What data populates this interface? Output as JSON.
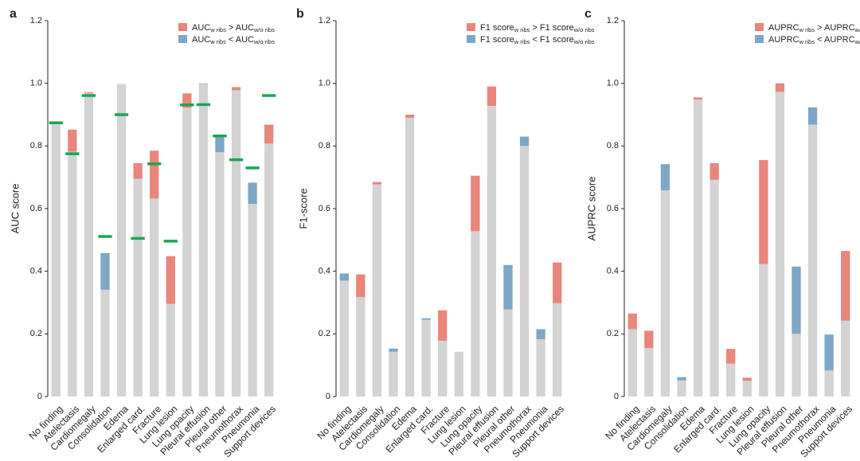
{
  "colors": {
    "base": "#d3d3d3",
    "higher_with_ribs": "#e8857d",
    "lower_with_ribs": "#7ea6c6",
    "marker": "#1aa552"
  },
  "legend": {
    "a": [
      {
        "main1": "AUC",
        "sub1": "w ribs",
        "op": ">",
        "main2": "AUC",
        "sub2": "w/o ribs"
      },
      {
        "main1": "AUC",
        "sub1": "w ribs",
        "op": "<",
        "main2": "AUC",
        "sub2": "w/o ribs"
      }
    ],
    "b": [
      {
        "main1": "F1 score",
        "sub1": "w ribs",
        "op": ">",
        "main2": "F1 score",
        "sub2": "w/o ribs"
      },
      {
        "main1": "F1 score",
        "sub1": "w ribs",
        "op": "<",
        "main2": "F1 score",
        "sub2": "w/o ribs"
      }
    ],
    "c": [
      {
        "main1": "AUPRC",
        "sub1": "w ribs",
        "op": ">",
        "main2": "AUPRC",
        "sub2": "w/o ribs"
      },
      {
        "main1": "AUPRC",
        "sub1": "w ribs",
        "op": "<",
        "main2": "AUPRC",
        "sub2": "w/o ribs"
      }
    ]
  },
  "chart_data": [
    {
      "panel": "a",
      "type": "bar",
      "ylabel": "AUC score",
      "ylim": [
        0,
        1.2
      ],
      "yticks": [
        "0",
        "0.2",
        "0.4",
        "0.6",
        "0.8",
        "1.0",
        "1.2"
      ],
      "categories": [
        "No finding",
        "Atelectasis",
        "Cardiomegaly",
        "Consolidation",
        "Edema",
        "Enlarged card.",
        "Fracture",
        "Lung lesion",
        "Lung opacity",
        "Pleural effusion",
        "Pleural other",
        "Pneumothorax",
        "Pneumonia",
        "Support devices"
      ],
      "with_ribs": [
        0.873,
        0.852,
        0.972,
        0.341,
        0.998,
        0.745,
        0.785,
        0.448,
        0.968,
        1.0,
        0.78,
        0.988,
        0.615,
        0.868
      ],
      "without_ribs": [
        0.872,
        0.782,
        0.968,
        0.458,
        0.998,
        0.695,
        0.632,
        0.296,
        0.922,
        0.998,
        0.833,
        0.978,
        0.683,
        0.808
      ],
      "reference": [
        0.874,
        0.775,
        0.961,
        0.511,
        0.9,
        0.505,
        0.743,
        0.496,
        0.931,
        0.932,
        0.832,
        0.756,
        0.73,
        0.961
      ]
    },
    {
      "panel": "b",
      "type": "bar",
      "ylabel": "F1-score",
      "ylim": [
        0,
        1.2
      ],
      "yticks": [
        "0",
        "0.2",
        "0.4",
        "0.6",
        "0.8",
        "1.0",
        "1.2"
      ],
      "categories": [
        "No finding",
        "Atelectasis",
        "Cardiomegaly",
        "Consolidation",
        "Edema",
        "Enlarged card.",
        "Fracture",
        "Lung lesion",
        "Lung opacity",
        "Pleural effusion",
        "Pleural other",
        "Pneumothorax",
        "Pneumonia",
        "Support devices"
      ],
      "with_ribs": [
        0.37,
        0.39,
        0.685,
        0.143,
        0.9,
        0.245,
        0.275,
        0.143,
        0.705,
        0.99,
        0.278,
        0.8,
        0.183,
        0.428
      ],
      "without_ribs": [
        0.393,
        0.317,
        0.677,
        0.153,
        0.89,
        0.25,
        0.178,
        0.143,
        0.528,
        0.928,
        0.42,
        0.83,
        0.215,
        0.298
      ]
    },
    {
      "panel": "c",
      "type": "bar",
      "ylabel": "AUPRC score",
      "ylim": [
        0,
        1.2
      ],
      "yticks": [
        "0",
        "0.2",
        "0.4",
        "0.6",
        "0.8",
        "1.0",
        "1.2"
      ],
      "categories": [
        "No finding",
        "Atelectasis",
        "Cardiomegaly",
        "Consolidation",
        "Edema",
        "Enlarged card.",
        "Fracture",
        "Lung lesion",
        "Lung opacity",
        "Pleural effusion",
        "Pleural other",
        "Pneumothorax",
        "Pneumonia",
        "Support devices"
      ],
      "with_ribs": [
        0.265,
        0.21,
        0.658,
        0.052,
        0.955,
        0.745,
        0.152,
        0.06,
        0.755,
        1.0,
        0.2,
        0.868,
        0.083,
        0.465
      ],
      "without_ribs": [
        0.215,
        0.155,
        0.742,
        0.062,
        0.948,
        0.692,
        0.105,
        0.05,
        0.423,
        0.973,
        0.415,
        0.923,
        0.198,
        0.242
      ]
    }
  ]
}
